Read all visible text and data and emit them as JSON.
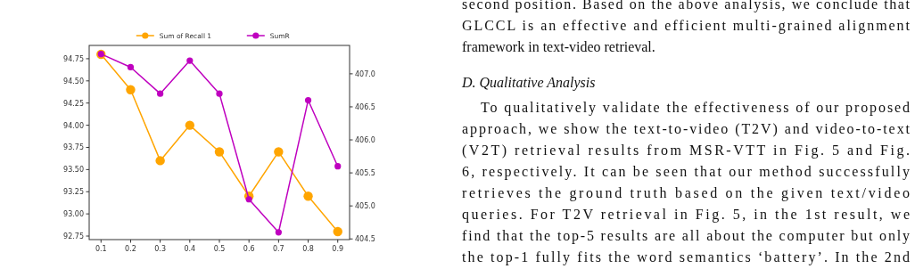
{
  "chart_data": {
    "type": "line",
    "x": [
      0.1,
      0.2,
      0.3,
      0.4,
      0.5,
      0.6,
      0.7,
      0.8,
      0.9
    ],
    "series": [
      {
        "name": "Sum of Recall 1",
        "color": "#ffa500",
        "values": [
          94.8,
          94.4,
          93.6,
          94.0,
          93.7,
          93.2,
          93.7,
          93.2,
          92.8
        ]
      },
      {
        "name": "SumR",
        "color": "#bf00bf",
        "axis": "y2",
        "values": [
          407.3,
          407.1,
          406.7,
          407.2,
          406.7,
          405.1,
          404.6,
          406.6,
          405.6
        ]
      }
    ],
    "xlim": [
      0.06,
      0.94
    ],
    "xticks": [
      0.1,
      0.2,
      0.3,
      0.4,
      0.5,
      0.6,
      0.7,
      0.8,
      0.9
    ],
    "ylim": [
      92.71,
      94.9
    ],
    "yticks": [
      {
        "value": 92.75,
        "label": "92.75"
      },
      {
        "value": 93,
        "label": "93.00"
      },
      {
        "value": 93.25,
        "label": "93.25"
      },
      {
        "value": 93.5,
        "label": "93.50"
      },
      {
        "value": 93.75,
        "label": "93.75"
      },
      {
        "value": 94,
        "label": "94.00"
      },
      {
        "value": 94.25,
        "label": "94.25"
      },
      {
        "value": 94.5,
        "label": "94.50"
      },
      {
        "value": 94.75,
        "label": "94.75"
      }
    ],
    "y2lim": [
      404.49,
      407.43
    ],
    "y2ticks": [
      {
        "value": 404.5,
        "label": "404.5"
      },
      {
        "value": 405,
        "label": "405.0"
      },
      {
        "value": 405.5,
        "label": "405.5"
      },
      {
        "value": 406,
        "label": "406.0"
      },
      {
        "value": 406.5,
        "label": "406.5"
      },
      {
        "value": 407,
        "label": "407.0"
      }
    ],
    "marker": "circle",
    "legend": "top",
    "grid": false,
    "annotations": [
      "second position. Based on the above analysis, we conclude that",
      "GLCCL is an effective and efficient multi-grained alignment",
      "framework in text-video retrieval.",
      "D.  Qualitative Analysis",
      "To qualitatively validate the effectiveness of our proposed",
      "approach, we show the text-to-video (T2V) and video-to-text",
      "(V2T) retrieval results from MSR-VTT in Fig. 5 and Fig.",
      "6, respectively. It can be seen that our method successfully",
      "retrieves the ground truth based on the given text/video",
      "queries. For T2V retrieval in Fig. 5, in the 1st result, we",
      "find that the top-5 results are all about the computer but only",
      "the top-1 fully fits the word semantics ‘battery’. In the 2nd"
    ]
  }
}
